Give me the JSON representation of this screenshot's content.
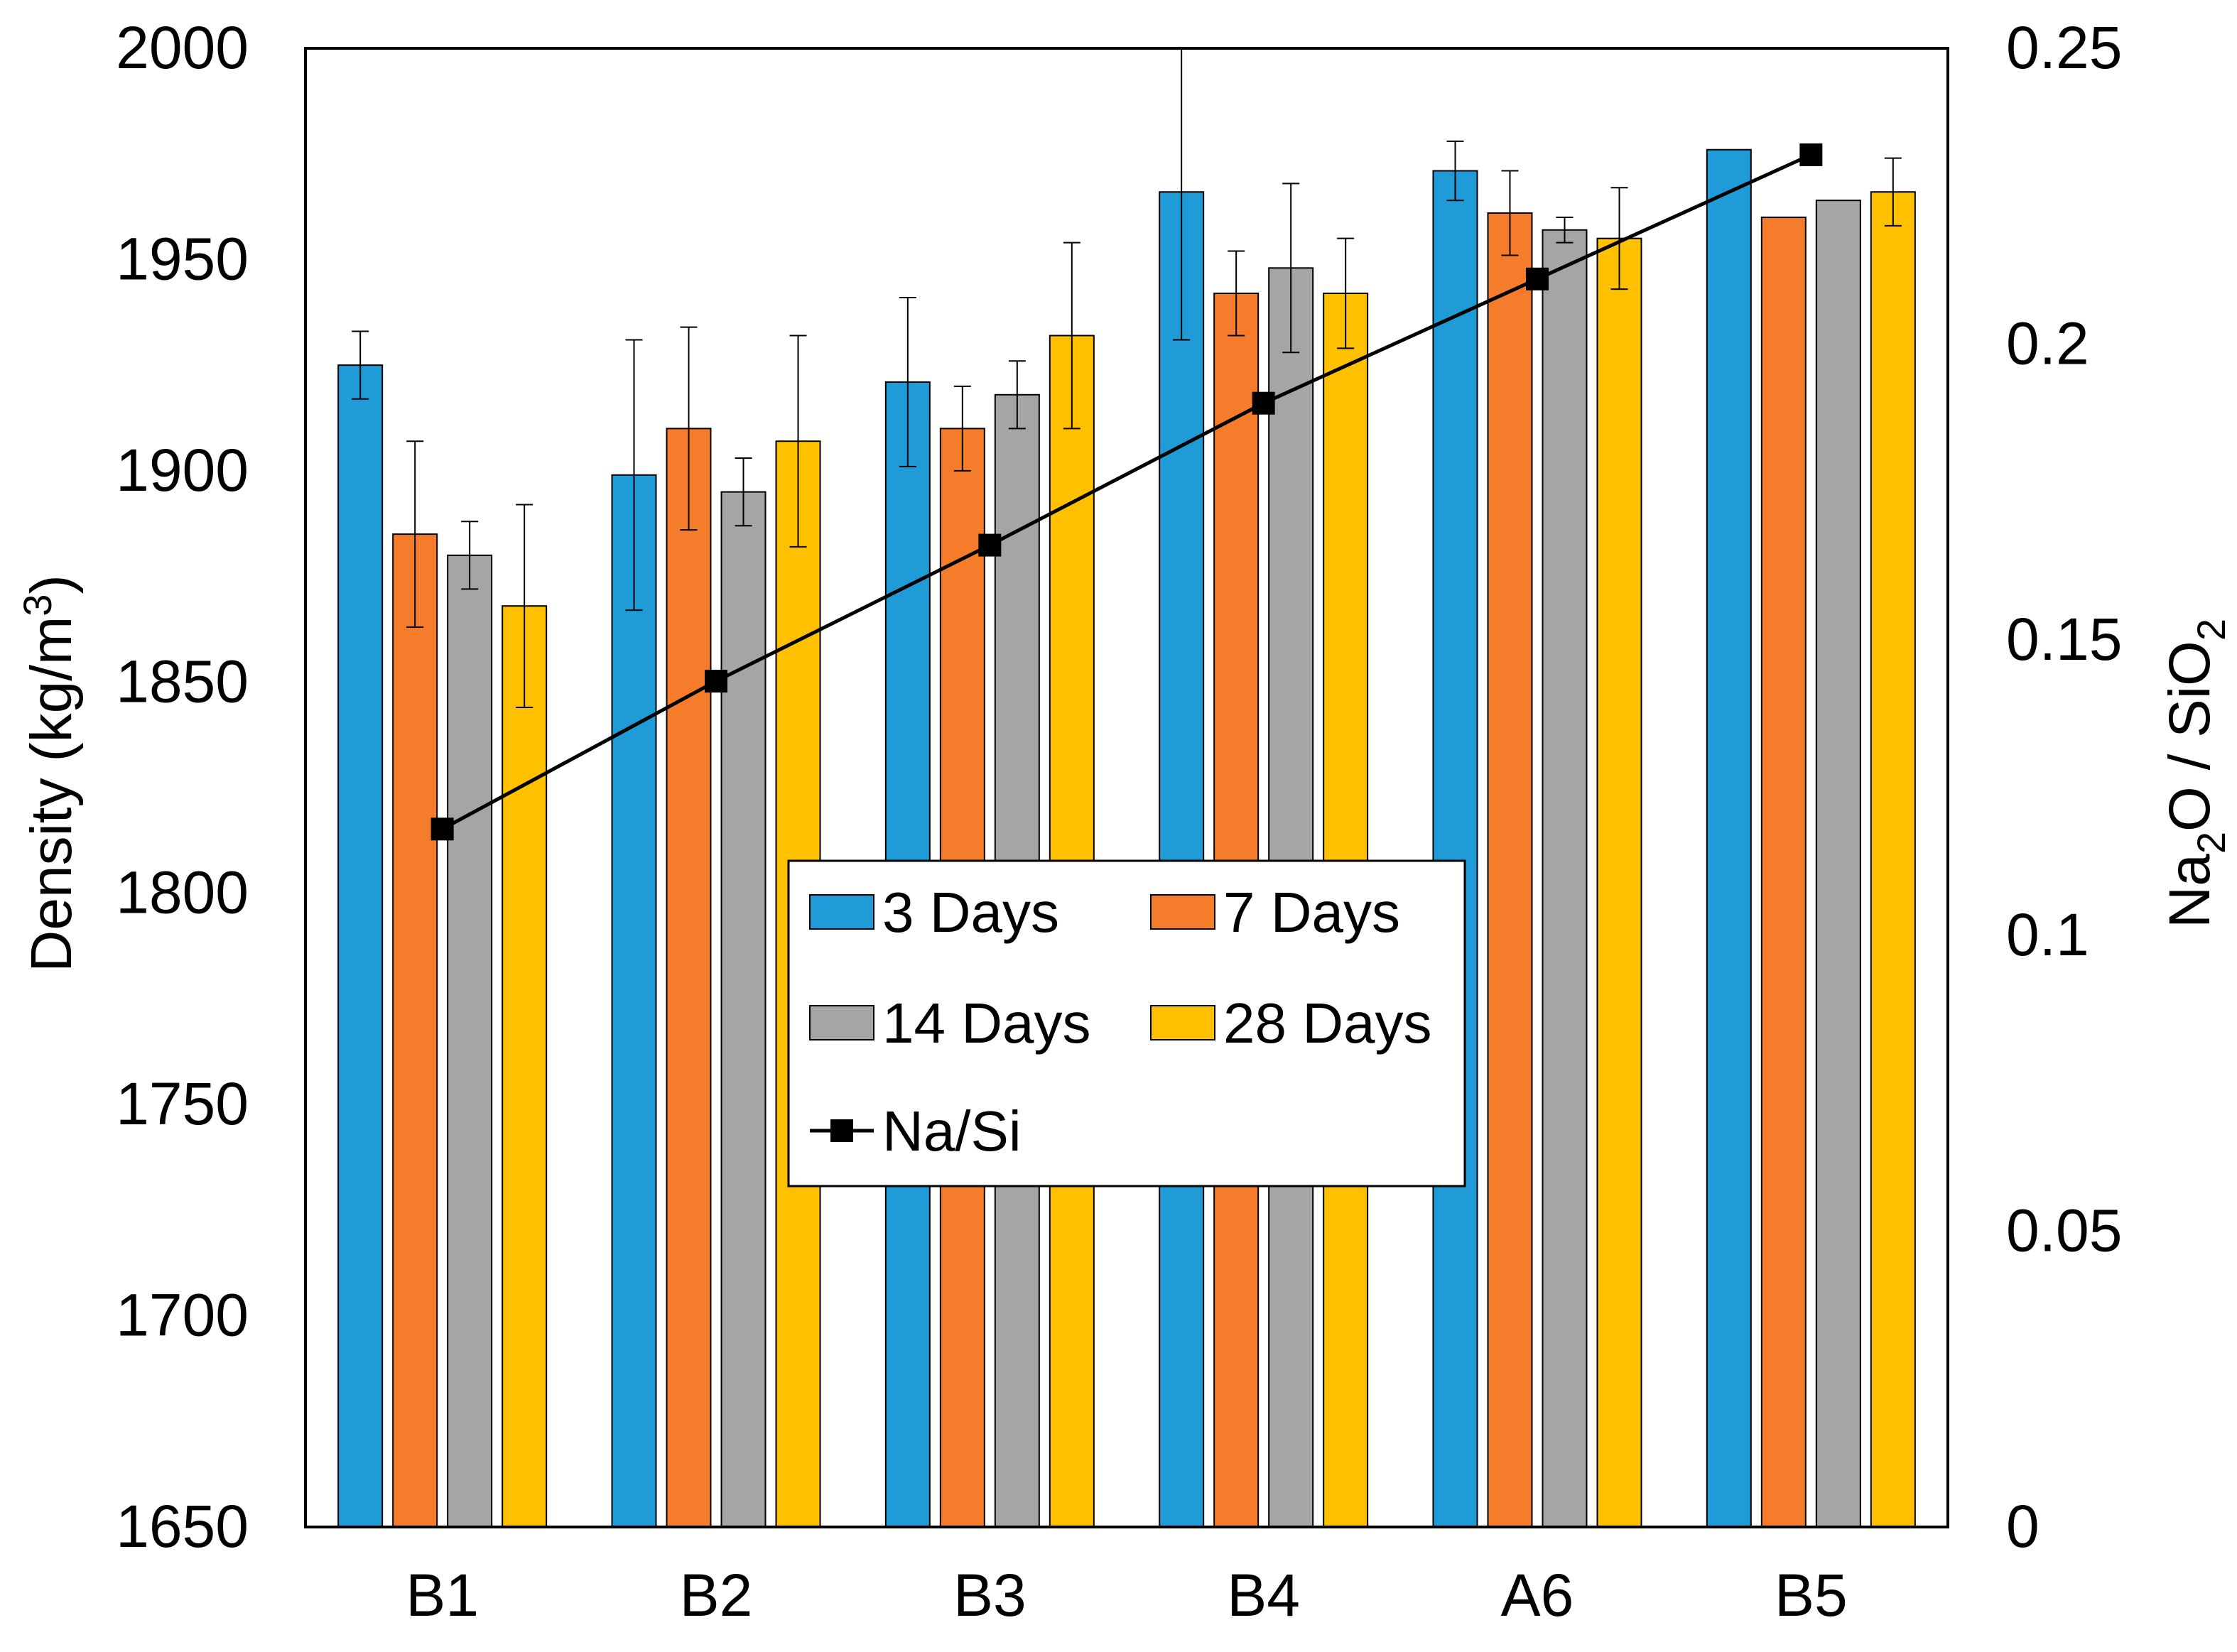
{
  "chart_data": {
    "type": "bar",
    "categories": [
      "B1",
      "B2",
      "B3",
      "B4",
      "A6",
      "B5"
    ],
    "series": [
      {
        "name": "3 Days",
        "color": "#1f9bd7",
        "values": [
          1925,
          1899,
          1921,
          1966,
          1971,
          1976
        ],
        "errors": [
          8,
          32,
          20,
          35,
          7,
          0
        ]
      },
      {
        "name": "7 Days",
        "color": "#f47c2a",
        "values": [
          1885,
          1910,
          1910,
          1942,
          1961,
          1960
        ],
        "errors": [
          22,
          24,
          10,
          10,
          10,
          0
        ]
      },
      {
        "name": "14 Days",
        "color": "#a5a5a5",
        "values": [
          1880,
          1895,
          1918,
          1948,
          1957,
          1964
        ],
        "errors": [
          8,
          8,
          8,
          20,
          3,
          0
        ]
      },
      {
        "name": "28 Days",
        "color": "#ffc000",
        "values": [
          1868,
          1907,
          1932,
          1942,
          1955,
          1966
        ],
        "errors": [
          24,
          25,
          22,
          13,
          12,
          8
        ]
      }
    ],
    "line_series": {
      "name": "Na/Si",
      "color": "#000000",
      "axis": "right",
      "values": [
        0.118,
        0.143,
        0.166,
        0.19,
        0.211,
        0.232
      ]
    },
    "ylabel": "Density (kg/m",
    "ylabel_superscript": "3",
    "ylabel_close": ")",
    "ylim": [
      1650,
      2000
    ],
    "yticks": [
      "1650",
      "1700",
      "1750",
      "1800",
      "1850",
      "1900",
      "1950",
      "2000"
    ],
    "y2label_parts": [
      "Na",
      "2",
      "O / SiO",
      "2"
    ],
    "y2lim": [
      0,
      0.25
    ],
    "y2ticks": [
      "0",
      "0.05",
      "0.1",
      "0.15",
      "0.2",
      "0.25"
    ],
    "legend_position": "center",
    "grid": false
  }
}
